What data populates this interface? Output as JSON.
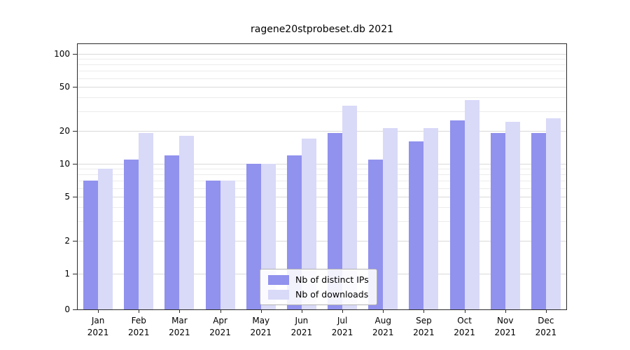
{
  "chart_data": {
    "type": "bar",
    "title": "ragene20stprobeset.db 2021",
    "xlabel": "",
    "ylabel": "",
    "year": "2021",
    "categories": [
      "Jan",
      "Feb",
      "Mar",
      "Apr",
      "May",
      "Jun",
      "Jul",
      "Aug",
      "Sep",
      "Oct",
      "Nov",
      "Dec"
    ],
    "series": [
      {
        "name": "Nb of distinct IPs",
        "color": "#9191ee",
        "values": [
          7,
          11,
          12,
          7,
          10,
          12,
          19,
          11,
          16,
          25,
          19,
          19
        ]
      },
      {
        "name": "Nb of downloads",
        "color": "#d9d9f8",
        "values": [
          9,
          19,
          18,
          7,
          10,
          17,
          34,
          21,
          21,
          38,
          24,
          26
        ]
      }
    ],
    "yscale": "symlog",
    "ylim": [
      0,
      120
    ],
    "yticks": [
      100,
      50,
      20,
      10,
      5,
      2,
      1,
      0
    ],
    "minor_gridlines": [
      3,
      4,
      6,
      7,
      8,
      9,
      30,
      40,
      60,
      70,
      80,
      90
    ],
    "grid": "horizontal",
    "legend_position": "lower center inside"
  }
}
